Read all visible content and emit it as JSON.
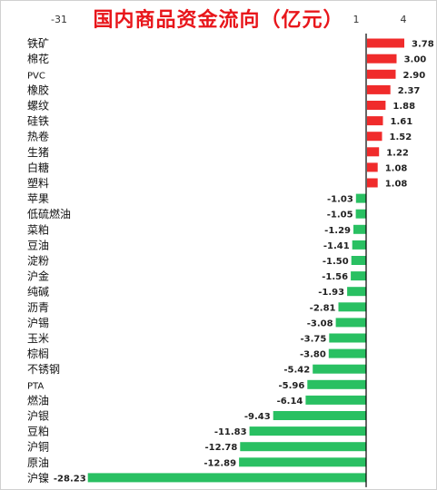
{
  "chart_data": {
    "type": "bar",
    "orientation": "horizontal",
    "title": "国内商品资金流向（亿元）",
    "xlabel": "",
    "ylabel": "",
    "x_ticks": [
      "-31",
      "1",
      "4"
    ],
    "xlim": [
      -31,
      4
    ],
    "grid": false,
    "legend": "none",
    "colors": {
      "positive": "#f02b2b",
      "negative": "#29c062",
      "axis": "#000000"
    },
    "categories": [
      "铁矿",
      "棉花",
      "PVC",
      "橡胶",
      "螺纹",
      "硅铁",
      "热卷",
      "生猪",
      "白糖",
      "塑料",
      "苹果",
      "低硫燃油",
      "菜粕",
      "豆油",
      "淀粉",
      "沪金",
      "纯碱",
      "沥青",
      "沪锡",
      "玉米",
      "棕榈",
      "不锈钢",
      "PTA",
      "燃油",
      "沪银",
      "豆粕",
      "沪铜",
      "原油",
      "沪镍"
    ],
    "values": [
      3.78,
      3.0,
      2.9,
      2.37,
      1.88,
      1.61,
      1.52,
      1.22,
      1.08,
      1.08,
      -1.03,
      -1.05,
      -1.29,
      -1.41,
      -1.5,
      -1.56,
      -1.93,
      -2.81,
      -3.08,
      -3.75,
      -3.8,
      -5.42,
      -5.96,
      -6.14,
      -9.43,
      -11.83,
      -12.78,
      -12.89,
      -28.23
    ],
    "value_labels": [
      "3.78",
      "3.00",
      "2.90",
      "2.37",
      "1.88",
      "1.61",
      "1.52",
      "1.22",
      "1.08",
      "1.08",
      "-1.03",
      "-1.05",
      "-1.29",
      "-1.41",
      "-1.50",
      "-1.56",
      "-1.93",
      "-2.81",
      "-3.08",
      "-3.75",
      "-3.80",
      "-5.42",
      "-5.96",
      "-6.14",
      "-9.43",
      "-11.83",
      "-12.78",
      "-12.89",
      "-28.23"
    ]
  }
}
